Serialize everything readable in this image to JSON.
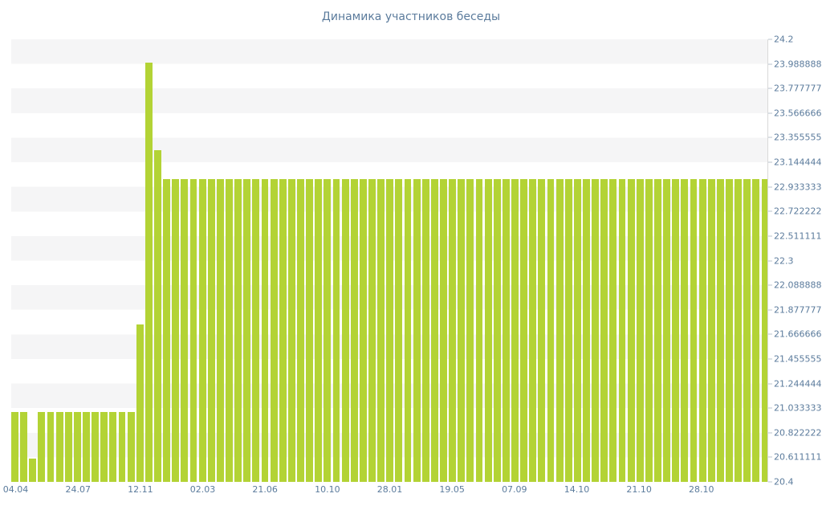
{
  "page": {
    "background": "#ffffff"
  },
  "chart_data": {
    "type": "bar",
    "title": "Динамика участников беседы",
    "xlabel": "",
    "ylabel": "",
    "ylim": [
      20.4,
      24.2
    ],
    "grid": "horizontal-stripes",
    "legend": "none",
    "y_axis_side": "right",
    "y_tick_labels": [
      "24.2",
      "23.98888888888889",
      "23.77777777777778",
      "23.56666666666667",
      "23.35555555555556",
      "23.14444444444444",
      "22.93333333333333",
      "22.72222222222222",
      "22.51111111111111",
      "22.3",
      "22.08888888888889",
      "21.87777777777778",
      "21.66666666666667",
      "21.45555555555556",
      "21.24444444444444",
      "21.03333333333333",
      "20.82222222222222",
      "20.61111111111111",
      "20.4"
    ],
    "x_tick_labels": [
      "04.04",
      "24.07",
      "12.11",
      "02.03",
      "21.06",
      "10.10",
      "28.01",
      "19.05",
      "07.09",
      "14.10",
      "21.10",
      "28.10"
    ],
    "x_tick_every": 7,
    "values": [
      21,
      21,
      20.6,
      21,
      21,
      21,
      21,
      21,
      21,
      21,
      21,
      21,
      21,
      21,
      21.75,
      24,
      23.25,
      23,
      23,
      23,
      23,
      23,
      23,
      23,
      23,
      23,
      23,
      23,
      23,
      23,
      23,
      23,
      23,
      23,
      23,
      23,
      23,
      23,
      23,
      23,
      23,
      23,
      23,
      23,
      23,
      23,
      23,
      23,
      23,
      23,
      23,
      23,
      23,
      23,
      23,
      23,
      23,
      23,
      23,
      23,
      23,
      23,
      23,
      23,
      23,
      23,
      23,
      23,
      23,
      23,
      23,
      23,
      23,
      23,
      23,
      23,
      23,
      23,
      23,
      23,
      23,
      23,
      23,
      23,
      23
    ],
    "colors": {
      "bar": "#b3d335",
      "text": "#5b7b9c",
      "stripe": "#f5f5f6",
      "axis": "#d9d9d9"
    }
  }
}
